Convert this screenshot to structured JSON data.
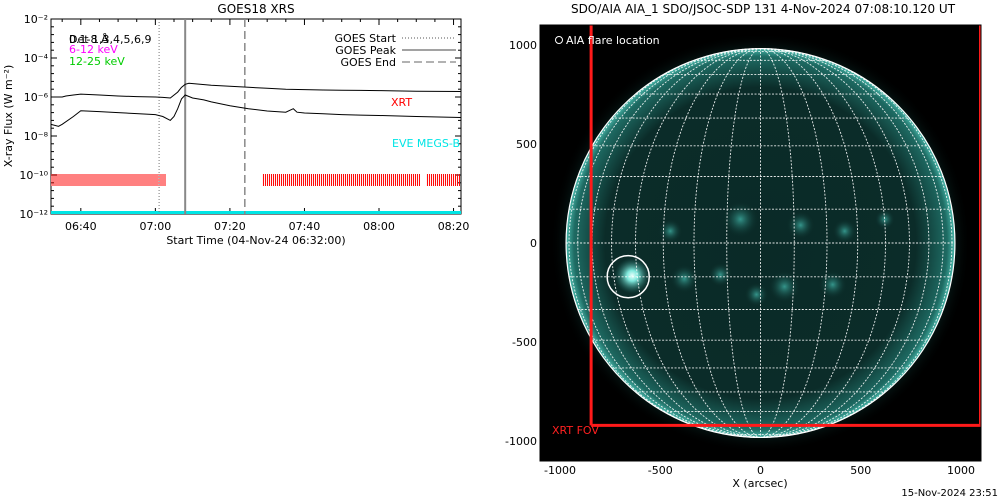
{
  "chart_data": [
    {
      "type": "line",
      "title": "GOES18 XRS",
      "ylabel": "X-ray Flux (W m⁻²)",
      "xlabel": "Start Time (04-Nov-24 06:32:00)",
      "x_range": [
        "06:32",
        "08:22"
      ],
      "y_log_range": [
        -12,
        -2
      ],
      "x_ticks": [
        "06:40",
        "07:00",
        "07:20",
        "07:40",
        "08:00",
        "08:20"
      ],
      "y_ticks": [
        "10⁻¹²",
        "10⁻¹⁰",
        "10⁻⁸",
        "10⁻⁶",
        "10⁻⁴",
        "10⁻²"
      ],
      "legend_left": [
        {
          "label": "0.1-8 Å",
          "color": "#000000"
        },
        {
          "label": "6-12 keV",
          "color": "#ff00ff"
        },
        {
          "label": "12-25 keV",
          "color": "#00cc00"
        }
      ],
      "overlap_label": "Det 1,3,4,5,6,9",
      "legend_right": [
        {
          "label": "GOES Start",
          "style": "dotted"
        },
        {
          "label": "GOES Peak",
          "style": "solid"
        },
        {
          "label": "GOES End",
          "style": "dashed"
        }
      ],
      "event_markers": {
        "start": "07:01",
        "peak": "07:08",
        "end": "07:24"
      },
      "series": [
        {
          "name": "0.1-8 Å",
          "color": "#000000",
          "x": [
            "06:32",
            "06:35",
            "06:36",
            "06:38",
            "06:40",
            "06:45",
            "06:50",
            "06:55",
            "07:00",
            "07:02",
            "07:04",
            "07:06",
            "07:07",
            "07:08",
            "07:09",
            "07:12",
            "07:15",
            "07:20",
            "07:25",
            "07:30",
            "07:35",
            "07:40",
            "07:45",
            "07:50",
            "07:55",
            "08:00",
            "08:10",
            "08:22"
          ],
          "log_y": [
            -6.0,
            -6.0,
            -5.95,
            -5.9,
            -5.85,
            -5.9,
            -5.95,
            -5.98,
            -6.0,
            -6.02,
            -6.05,
            -5.75,
            -5.5,
            -5.35,
            -5.3,
            -5.35,
            -5.4,
            -5.45,
            -5.5,
            -5.55,
            -5.6,
            -5.62,
            -5.64,
            -5.65,
            -5.66,
            -5.67,
            -5.7,
            -5.72
          ]
        },
        {
          "name": "",
          "color": "#000000",
          "x": [
            "06:32",
            "06:34",
            "06:35",
            "06:38",
            "06:40",
            "06:45",
            "06:50",
            "06:55",
            "07:00",
            "07:02",
            "07:04",
            "07:05",
            "07:06",
            "07:07",
            "07:08",
            "07:10",
            "07:13",
            "07:15",
            "07:20",
            "07:25",
            "07:30",
            "07:35",
            "07:37",
            "07:38",
            "07:40",
            "07:45",
            "07:50",
            "07:55",
            "08:00",
            "08:10",
            "08:22"
          ],
          "log_y": [
            -7.4,
            -7.5,
            -7.4,
            -7.0,
            -6.7,
            -6.75,
            -6.8,
            -6.85,
            -6.9,
            -7.0,
            -7.2,
            -7.0,
            -6.6,
            -6.1,
            -5.9,
            -6.05,
            -6.15,
            -6.25,
            -6.45,
            -6.6,
            -6.72,
            -6.78,
            -6.6,
            -6.78,
            -6.82,
            -6.86,
            -6.9,
            -6.93,
            -6.95,
            -7.0,
            -7.05
          ]
        }
      ],
      "instrument_labels": [
        {
          "label": "XRT",
          "color": "#ff0000"
        },
        {
          "label": "EVE MEGS-B",
          "color": "#00ffff"
        }
      ],
      "xrt_coverage": [
        [
          "06:32",
          "07:03"
        ],
        [
          "07:29",
          "08:11"
        ],
        [
          "08:13",
          "08:22"
        ]
      ],
      "eve_coverage": [
        [
          "06:32",
          "08:22"
        ]
      ]
    },
    {
      "type": "image",
      "title": "SDO/AIA AIA_1 SDO/JSOC-SDP 131  4-Nov-2024 07:08:10.120 UT",
      "xlabel": "X (arcsec)",
      "x_ticks": [
        "-1000",
        "-500",
        "0",
        "500",
        "1000"
      ],
      "y_ticks": [
        "1000",
        "500",
        "0",
        "-500",
        "-1000"
      ],
      "x_range": [
        -1100,
        1100
      ],
      "y_range": [
        -1100,
        1100
      ],
      "solar_radius_arcsec": 970,
      "legend": "AIA flare location",
      "flare_location": {
        "x": -660,
        "y": -170,
        "radius": 105
      },
      "xrt_fov": {
        "label": "XRT FOV",
        "x_range": [
          -845,
          1100
        ],
        "y_range": [
          -920,
          1100
        ]
      },
      "colors": {
        "disk_glow": "#4fd4c6",
        "grid": "#ffffff",
        "fov": "#ff1a1a"
      }
    }
  ],
  "footer": {
    "timestamp": "15-Nov-2024 23:51"
  }
}
